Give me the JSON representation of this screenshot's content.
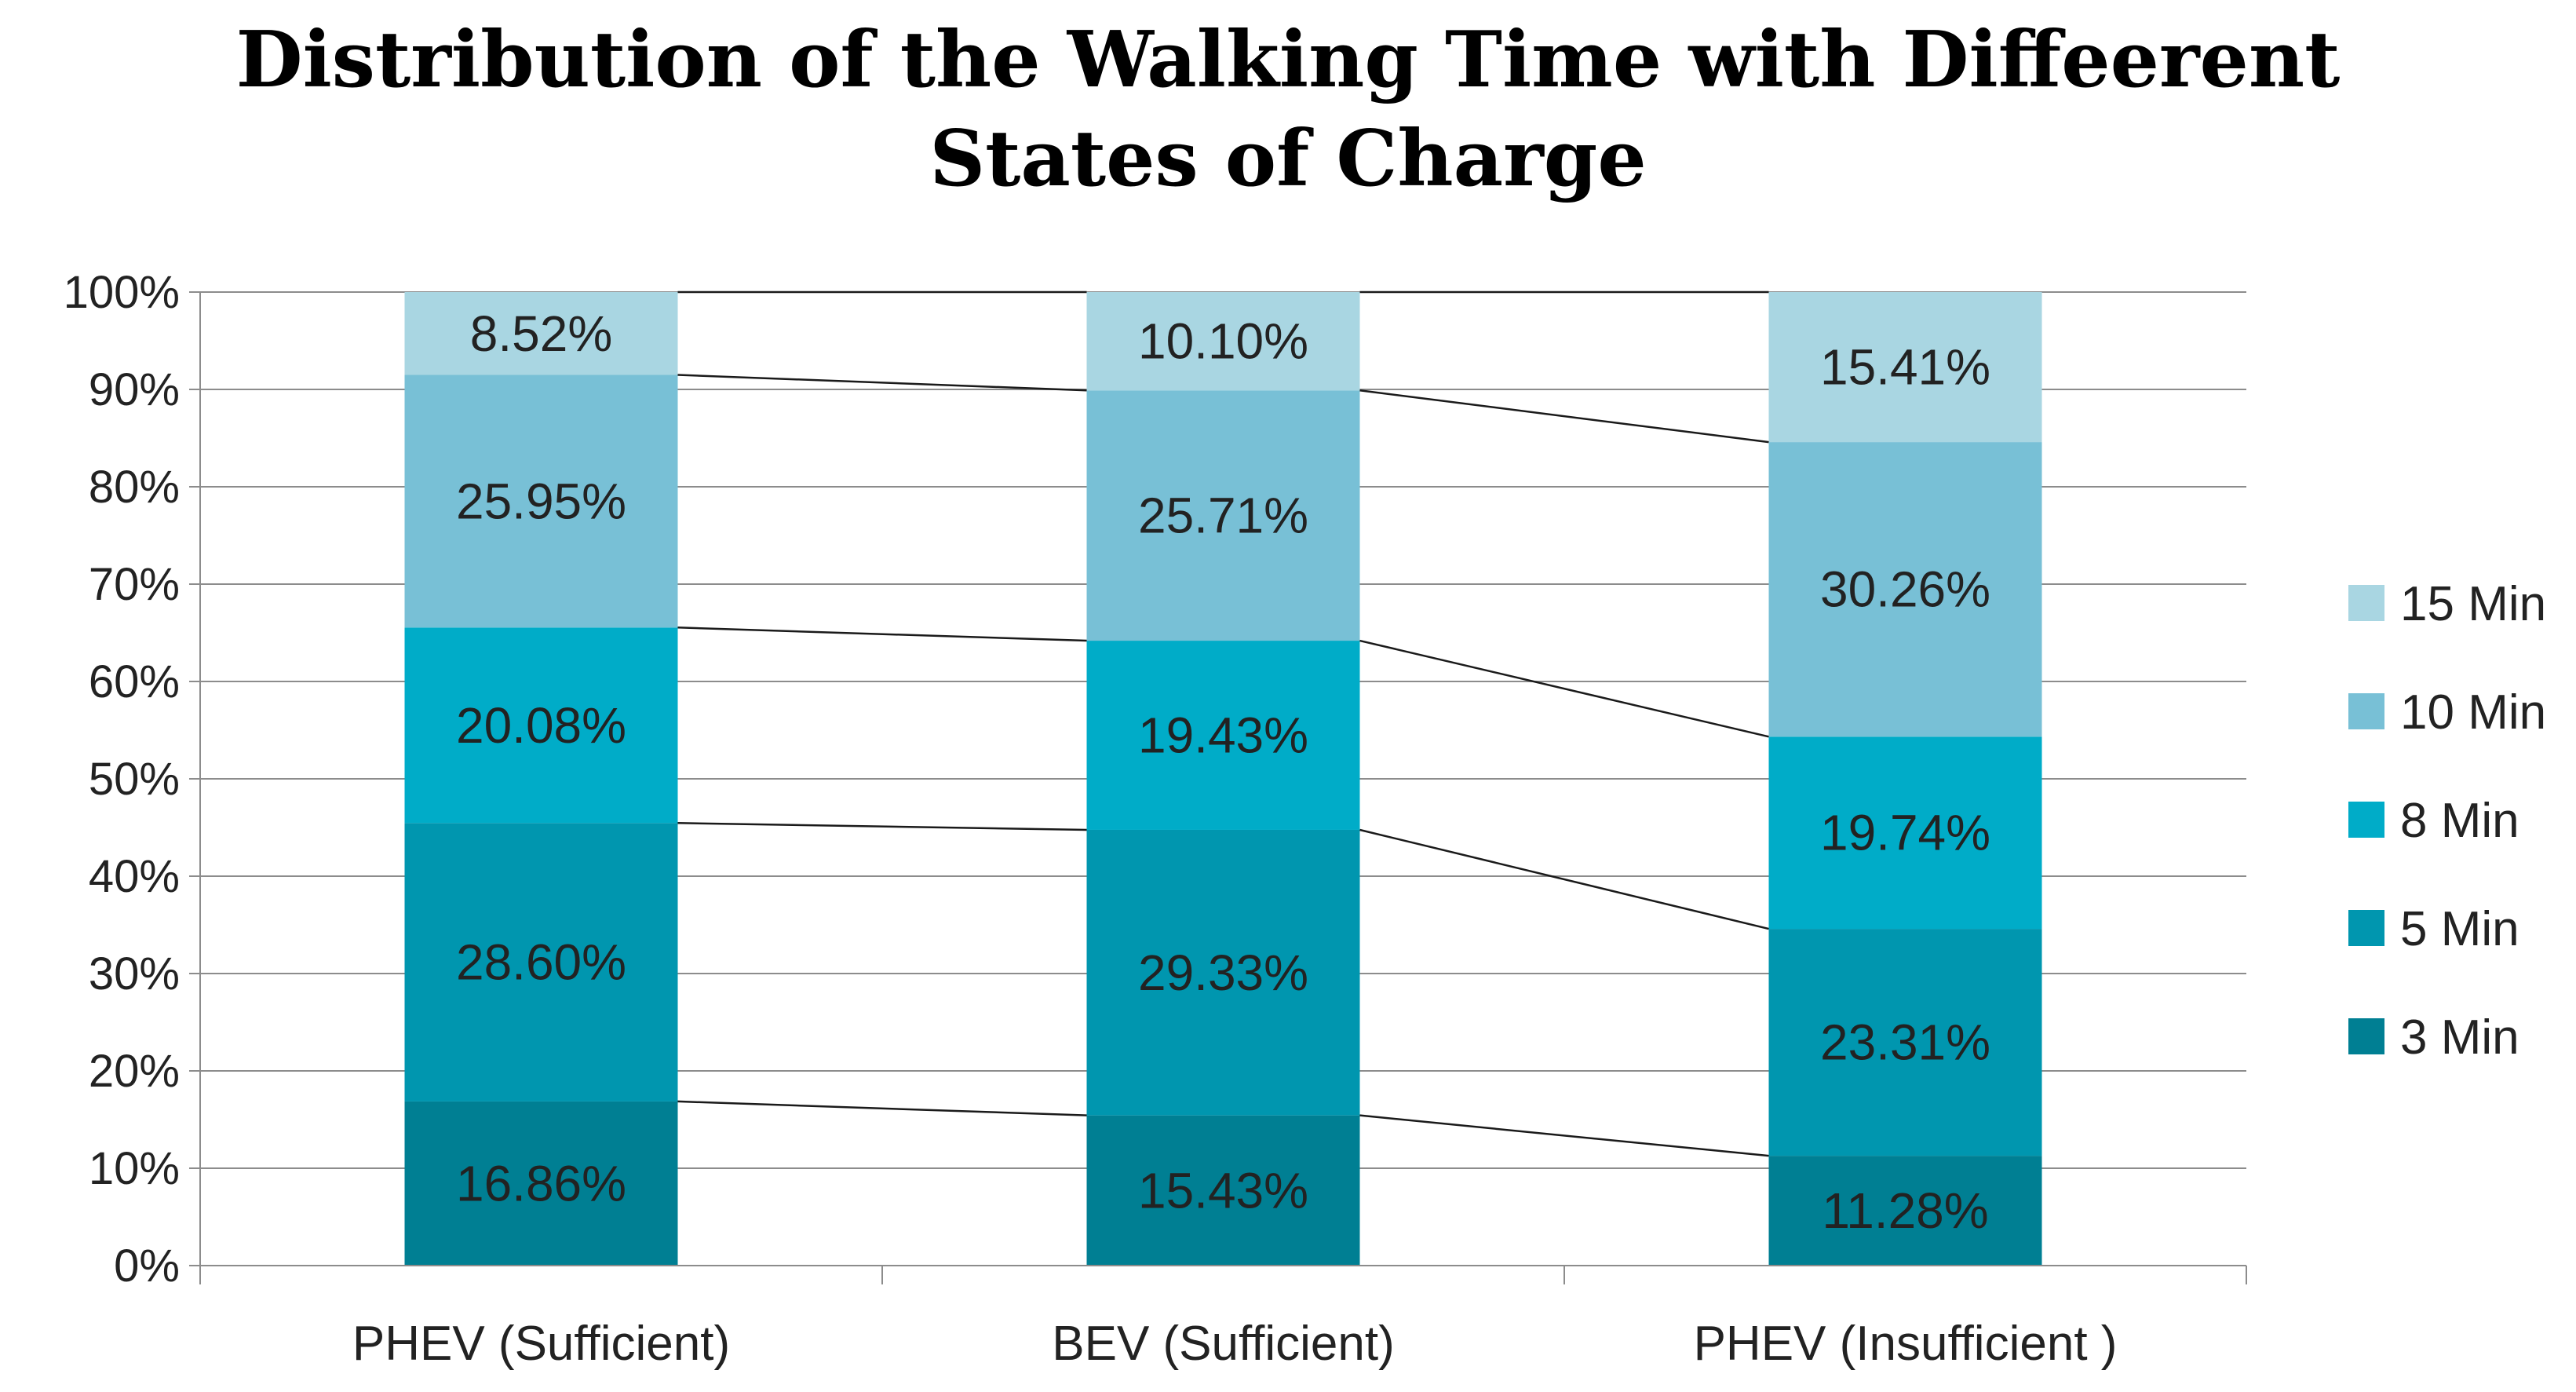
{
  "chart_data": {
    "type": "bar",
    "stacked": true,
    "title_lines": [
      "Distribution of the Walking Time with Diffeerent",
      "States of Charge"
    ],
    "categories": [
      "PHEV (Sufficient)",
      "BEV (Sufficient)",
      "PHEV (Insufficient )"
    ],
    "series": [
      {
        "name": "3 Min",
        "color": "#007F93",
        "values": [
          16.86,
          15.43,
          11.28
        ],
        "labels": [
          "16.86%",
          "15.43%",
          "11.28%"
        ]
      },
      {
        "name": "5 Min",
        "color": "#0096AF",
        "values": [
          28.6,
          29.33,
          23.31
        ],
        "labels": [
          "28.60%",
          "29.33%",
          "23.31%"
        ]
      },
      {
        "name": "8 Min",
        "color": "#00ACC8",
        "values": [
          20.08,
          19.43,
          19.74
        ],
        "labels": [
          "20.08%",
          "19.43%",
          "19.74%"
        ]
      },
      {
        "name": "10 Min",
        "color": "#78C0D6",
        "values": [
          25.95,
          25.71,
          30.26
        ],
        "labels": [
          "25.95%",
          "25.71%",
          "30.26%"
        ]
      },
      {
        "name": "15 Min",
        "color": "#A9D6E2",
        "values": [
          8.52,
          10.1,
          15.41
        ],
        "labels": [
          "8.52%",
          "10.10%",
          "15.41%"
        ]
      }
    ],
    "y_ticks": [
      "0%",
      "10%",
      "20%",
      "30%",
      "40%",
      "50%",
      "60%",
      "70%",
      "80%",
      "90%",
      "100%"
    ],
    "ylim": [
      0,
      100
    ],
    "grid": true,
    "series_lines": true,
    "legend_position": "right"
  }
}
